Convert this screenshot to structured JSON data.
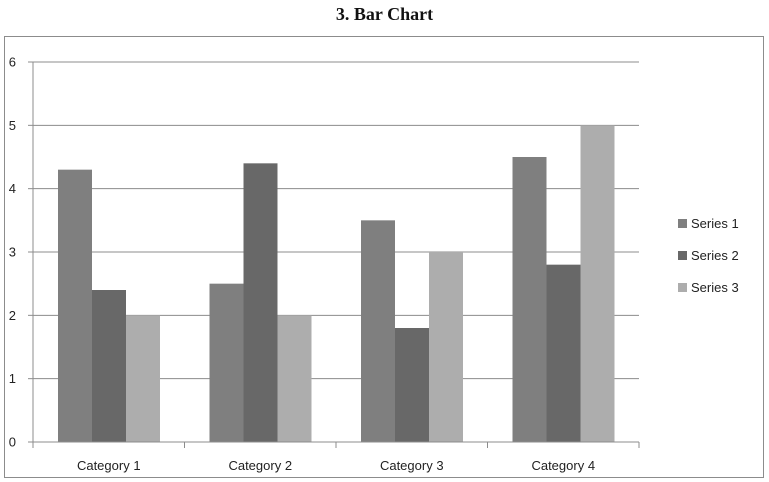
{
  "chart_data": {
    "type": "bar",
    "title": "3. Bar Chart",
    "categories": [
      "Category 1",
      "Category 2",
      "Category 3",
      "Category 4"
    ],
    "series": [
      {
        "name": "Series 1",
        "values": [
          4.3,
          2.5,
          3.5,
          4.5
        ],
        "color": "#7f7f7f"
      },
      {
        "name": "Series 2",
        "values": [
          2.4,
          4.4,
          1.8,
          2.8
        ],
        "color": "#686868"
      },
      {
        "name": "Series 3",
        "values": [
          2.0,
          2.0,
          3.0,
          5.0
        ],
        "color": "#adadad"
      }
    ],
    "ylim": [
      0,
      6
    ],
    "yticks": [
      "0",
      "1",
      "2",
      "3",
      "4",
      "5",
      "6"
    ],
    "grid": true,
    "legend": "right"
  }
}
